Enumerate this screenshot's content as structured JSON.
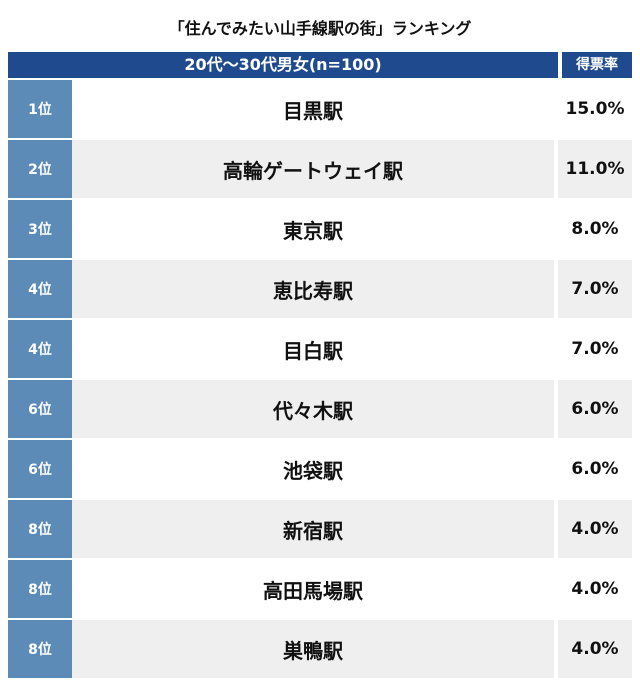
{
  "title": "「住んでみたい山手線駅の街」ランキング",
  "header": {
    "group_label": "20代〜30代男女(n=100)",
    "percent_label": "得票率"
  },
  "rows": [
    {
      "rank": "1位",
      "station": "目黒駅",
      "percent": "15.0%"
    },
    {
      "rank": "2位",
      "station": "高輪ゲートウェイ駅",
      "percent": "11.0%"
    },
    {
      "rank": "3位",
      "station": "東京駅",
      "percent": "8.0%"
    },
    {
      "rank": "4位",
      "station": "恵比寿駅",
      "percent": "7.0%"
    },
    {
      "rank": "4位",
      "station": "目白駅",
      "percent": "7.0%"
    },
    {
      "rank": "6位",
      "station": "代々木駅",
      "percent": "6.0%"
    },
    {
      "rank": "6位",
      "station": "池袋駅",
      "percent": "6.0%"
    },
    {
      "rank": "8位",
      "station": "新宿駅",
      "percent": "4.0%"
    },
    {
      "rank": "8位",
      "station": "高田馬場駅",
      "percent": "4.0%"
    },
    {
      "rank": "8位",
      "station": "巣鴨駅",
      "percent": "4.0%"
    }
  ],
  "colors": {
    "header_bg": "#1f4b8e",
    "rank_bg": "#5c8bb8",
    "alt_row_bg": "#efefef"
  }
}
